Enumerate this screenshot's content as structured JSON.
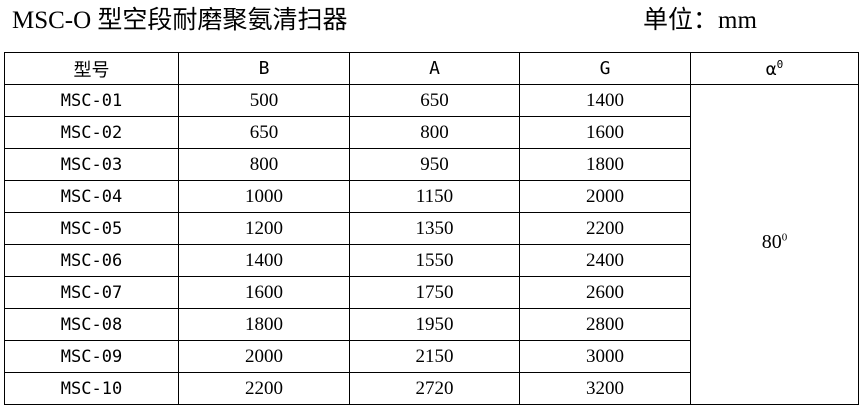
{
  "title": "MSC-O 型空段耐磨聚氨清扫器",
  "unit": "单位：mm",
  "table": {
    "headers": {
      "model": "型号",
      "b": "B",
      "a": "A",
      "g": "G",
      "alpha": "α",
      "alpha_sup": "0"
    },
    "rows": [
      {
        "model": "MSC-01",
        "b": "500",
        "a": "650",
        "g": "1400"
      },
      {
        "model": "MSC-02",
        "b": "650",
        "a": "800",
        "g": "1600"
      },
      {
        "model": "MSC-03",
        "b": "800",
        "a": "950",
        "g": "1800"
      },
      {
        "model": "MSC-04",
        "b": "1000",
        "a": "1150",
        "g": "2000"
      },
      {
        "model": "MSC-05",
        "b": "1200",
        "a": "1350",
        "g": "2200"
      },
      {
        "model": "MSC-06",
        "b": "1400",
        "a": "1550",
        "g": "2400"
      },
      {
        "model": "MSC-07",
        "b": "1600",
        "a": "1750",
        "g": "2600"
      },
      {
        "model": "MSC-08",
        "b": "1800",
        "a": "1950",
        "g": "2800"
      },
      {
        "model": "MSC-09",
        "b": "2000",
        "a": "2150",
        "g": "3000"
      },
      {
        "model": "MSC-10",
        "b": "2200",
        "a": "2720",
        "g": "3200"
      }
    ],
    "angle_value": "80",
    "angle_sup": "0"
  }
}
